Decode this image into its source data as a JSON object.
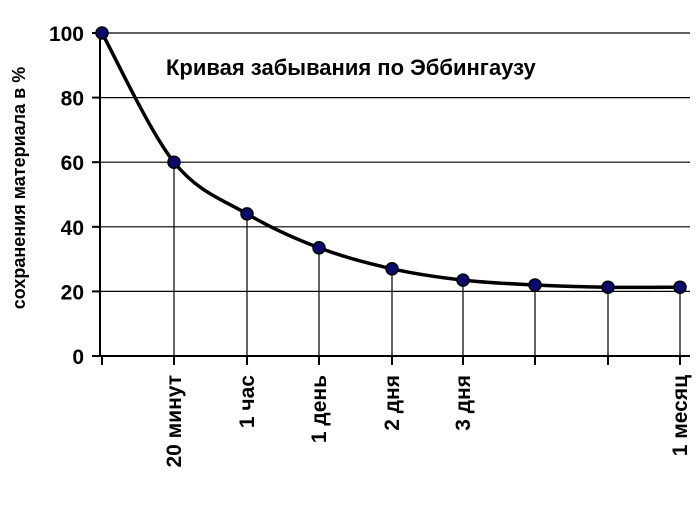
{
  "chart_data": {
    "type": "line",
    "title": "Кривая забывания по Эббингаузу",
    "ylabel": "сохранения материала в %",
    "xlabel": "",
    "ylim": [
      0,
      100
    ],
    "yticks": [
      0,
      20,
      40,
      60,
      80,
      100
    ],
    "grid": "horizontal",
    "categories": [
      "",
      "20 минут",
      "1 час",
      "1 день",
      "2 дня",
      "3 дня",
      "",
      "",
      "1 месяц"
    ],
    "values": [
      100,
      60,
      44,
      33.5,
      27,
      23.5,
      22,
      21.3,
      21.3
    ],
    "colors": {
      "line": "#000000",
      "marker": "#0a0a6e",
      "grid": "#000000"
    }
  }
}
